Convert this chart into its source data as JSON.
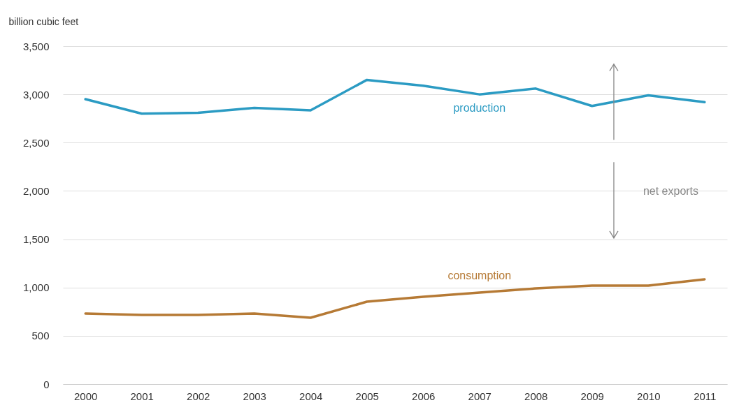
{
  "chart_data": {
    "type": "line",
    "ylabel": "billion cubic feet",
    "x": [
      2000,
      2001,
      2002,
      2003,
      2004,
      2005,
      2006,
      2007,
      2008,
      2009,
      2010,
      2011
    ],
    "xlim": [
      1999.6,
      2011.4
    ],
    "xticks": [
      2000,
      2001,
      2002,
      2003,
      2004,
      2005,
      2006,
      2007,
      2008,
      2009,
      2010,
      2011
    ],
    "ylim": [
      0,
      3500
    ],
    "yticks": [
      0,
      500,
      {
        "value": 1000,
        "label": "1,000"
      },
      {
        "value": 1500,
        "label": "1,500"
      },
      {
        "value": 2000,
        "label": "2,000"
      },
      {
        "value": 2500,
        "label": "2,500"
      },
      {
        "value": 3000,
        "label": "3,000"
      },
      {
        "value": 3500,
        "label": "3,500"
      }
    ],
    "grid": "y",
    "marker": "none",
    "line_style": "solid",
    "series": [
      {
        "name": "production",
        "color": "#2b9bc3",
        "values": [
          2950,
          2800,
          2810,
          2860,
          2835,
          3150,
          3090,
          3000,
          3060,
          2880,
          2990,
          2920
        ]
      },
      {
        "name": "consumption",
        "color": "#b67a35",
        "values": [
          730,
          716,
          716,
          730,
          687,
          853,
          904,
          947,
          991,
          1020,
          1020,
          1085
        ]
      }
    ],
    "annotations": [
      "net exports"
    ]
  }
}
